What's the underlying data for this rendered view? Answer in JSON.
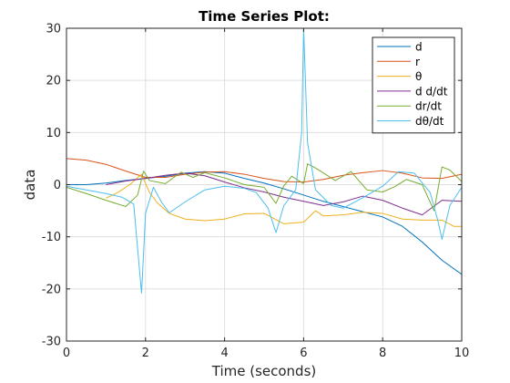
{
  "chart_data": {
    "type": "line",
    "title": "Time Series Plot:",
    "xlabel": "Time (seconds)",
    "ylabel": "data",
    "xlim": [
      0,
      10
    ],
    "ylim": [
      -30,
      30
    ],
    "xticks": [
      0,
      2,
      4,
      6,
      8,
      10
    ],
    "yticks": [
      -30,
      -20,
      -10,
      0,
      10,
      20,
      30
    ],
    "grid": true,
    "legend_position": "top-right",
    "series": [
      {
        "name": "d",
        "color": "#0072bd",
        "points": [
          [
            0,
            0
          ],
          [
            0.5,
            0
          ],
          [
            1,
            0.3
          ],
          [
            1.5,
            0.8
          ],
          [
            2,
            1.2
          ],
          [
            2.5,
            1.6
          ],
          [
            3,
            2.2
          ],
          [
            3.5,
            2.5
          ],
          [
            4,
            2.2
          ],
          [
            4.5,
            1.2
          ],
          [
            5,
            0.3
          ],
          [
            5.5,
            -0.8
          ],
          [
            6,
            -2
          ],
          [
            6.5,
            -3.2
          ],
          [
            7,
            -4.2
          ],
          [
            7.5,
            -5.2
          ],
          [
            8,
            -6.2
          ],
          [
            8.5,
            -8
          ],
          [
            9,
            -11
          ],
          [
            9.5,
            -14.5
          ],
          [
            10,
            -17.2
          ]
        ]
      },
      {
        "name": "r",
        "color": "#d95319",
        "points": [
          [
            0,
            5
          ],
          [
            0.5,
            4.7
          ],
          [
            1,
            3.9
          ],
          [
            1.5,
            2.6
          ],
          [
            2,
            1.4
          ],
          [
            2.5,
            1.4
          ],
          [
            3,
            2
          ],
          [
            3.5,
            2.4
          ],
          [
            4,
            2.5
          ],
          [
            4.5,
            2
          ],
          [
            5,
            1.2
          ],
          [
            5.5,
            0.6
          ],
          [
            6,
            0.5
          ],
          [
            6.5,
            1
          ],
          [
            7,
            1.8
          ],
          [
            7.5,
            2.3
          ],
          [
            8,
            2.7
          ],
          [
            8.5,
            2.2
          ],
          [
            9,
            1.3
          ],
          [
            9.5,
            1.2
          ],
          [
            10,
            2
          ]
        ]
      },
      {
        "name": "θ",
        "color": "#edb120",
        "points": [
          [
            1,
            -2.6
          ],
          [
            1.3,
            -1.5
          ],
          [
            1.6,
            0
          ],
          [
            1.9,
            2
          ],
          [
            2.1,
            -1.5
          ],
          [
            2.3,
            -3.5
          ],
          [
            2.6,
            -5.5
          ],
          [
            3,
            -6.6
          ],
          [
            3.5,
            -6.9
          ],
          [
            4,
            -6.6
          ],
          [
            4.5,
            -5.6
          ],
          [
            5,
            -5.5
          ],
          [
            5.5,
            -7.5
          ],
          [
            6,
            -7.2
          ],
          [
            6.3,
            -5
          ],
          [
            6.5,
            -6
          ],
          [
            7,
            -5.8
          ],
          [
            7.5,
            -5.3
          ],
          [
            8,
            -5.5
          ],
          [
            8.5,
            -6.6
          ],
          [
            9,
            -6.8
          ],
          [
            9.5,
            -6.8
          ],
          [
            9.8,
            -8
          ],
          [
            10,
            -8
          ]
        ]
      },
      {
        "name": "d d/dt",
        "color": "#7e2f8e",
        "points": [
          [
            1,
            0
          ],
          [
            1.5,
            0.7
          ],
          [
            2,
            1.2
          ],
          [
            2.5,
            1.8
          ],
          [
            3,
            2.2
          ],
          [
            3.5,
            1.7
          ],
          [
            4,
            0.5
          ],
          [
            4.5,
            -0.6
          ],
          [
            5,
            -1.4
          ],
          [
            5.5,
            -2.4
          ],
          [
            6,
            -3.2
          ],
          [
            6.5,
            -4
          ],
          [
            7,
            -3.3
          ],
          [
            7.5,
            -2.2
          ],
          [
            8,
            -3
          ],
          [
            8.5,
            -4.5
          ],
          [
            9,
            -5.8
          ],
          [
            9.5,
            -3
          ],
          [
            10,
            -3.2
          ]
        ]
      },
      {
        "name": "dr/dt",
        "color": "#77ac30",
        "points": [
          [
            0,
            -0.5
          ],
          [
            0.5,
            -1.7
          ],
          [
            1,
            -3
          ],
          [
            1.5,
            -4.2
          ],
          [
            1.8,
            -2
          ],
          [
            1.95,
            2.6
          ],
          [
            2.1,
            0.8
          ],
          [
            2.5,
            0.2
          ],
          [
            2.9,
            2.4
          ],
          [
            3.2,
            1.4
          ],
          [
            3.5,
            2.3
          ],
          [
            4,
            1.3
          ],
          [
            4.5,
            0
          ],
          [
            5,
            -0.5
          ],
          [
            5.3,
            -3.6
          ],
          [
            5.5,
            -0.2
          ],
          [
            5.7,
            1.6
          ],
          [
            6,
            0.2
          ],
          [
            6.1,
            4
          ],
          [
            6.3,
            3.2
          ],
          [
            6.8,
            0.8
          ],
          [
            7.2,
            2.5
          ],
          [
            7.6,
            -1
          ],
          [
            8,
            -1.4
          ],
          [
            8.3,
            -0.4
          ],
          [
            8.6,
            1
          ],
          [
            9,
            0
          ],
          [
            9.3,
            -5
          ],
          [
            9.5,
            3.4
          ],
          [
            9.7,
            2.8
          ],
          [
            10,
            0.6
          ]
        ]
      },
      {
        "name": "dθ/dt",
        "color": "#4dbeee",
        "points": [
          [
            0,
            -0.3
          ],
          [
            0.5,
            -1
          ],
          [
            1,
            -1.7
          ],
          [
            1.4,
            -2.4
          ],
          [
            1.7,
            -3.7
          ],
          [
            1.82,
            -14
          ],
          [
            1.9,
            -20.8
          ],
          [
            2,
            -5.5
          ],
          [
            2.2,
            -0.5
          ],
          [
            2.4,
            -3.3
          ],
          [
            2.6,
            -5.4
          ],
          [
            3,
            -3.3
          ],
          [
            3.5,
            -1
          ],
          [
            4,
            -0.3
          ],
          [
            4.5,
            -0.7
          ],
          [
            4.8,
            -1.5
          ],
          [
            5.1,
            -4.5
          ],
          [
            5.3,
            -9.2
          ],
          [
            5.5,
            -4
          ],
          [
            5.8,
            -1
          ],
          [
            5.95,
            10
          ],
          [
            6,
            30
          ],
          [
            6.1,
            8
          ],
          [
            6.3,
            -1
          ],
          [
            6.7,
            -4
          ],
          [
            7,
            -4.5
          ],
          [
            7.5,
            -2.5
          ],
          [
            8,
            -0.3
          ],
          [
            8.4,
            2.5
          ],
          [
            8.8,
            2.2
          ],
          [
            9.2,
            -1.5
          ],
          [
            9.4,
            -7
          ],
          [
            9.5,
            -10.5
          ],
          [
            9.7,
            -4
          ],
          [
            10,
            -0.5
          ]
        ]
      }
    ]
  }
}
